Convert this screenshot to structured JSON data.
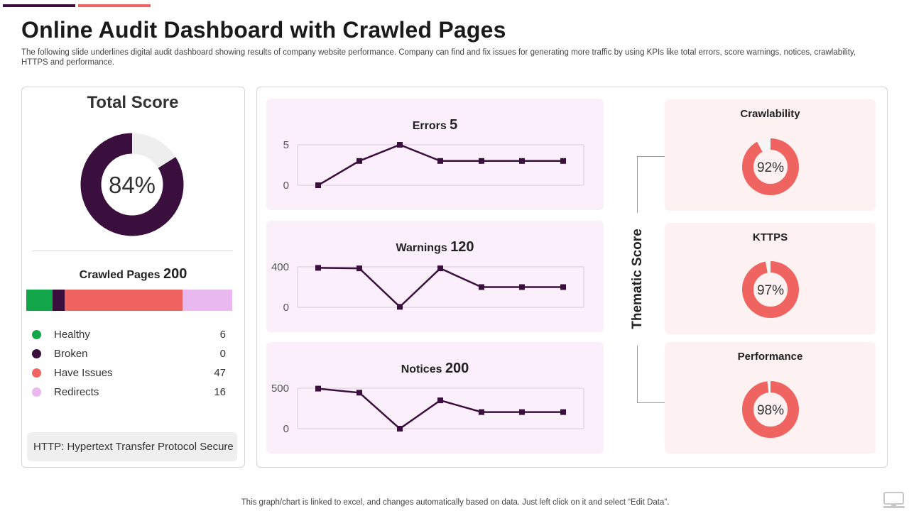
{
  "header": {
    "title": "Online Audit Dashboard with Crawled Pages",
    "subtitle": "The following slide underlines digital audit dashboard showing results of company website performance. Company can find and fix  issues for generating more traffic by using KPIs like total errors, score warnings, notices, crawlability, HTTPS  and performance."
  },
  "total_score": {
    "title": "Total Score",
    "label": "84%",
    "percent": 84,
    "colors": {
      "fill": "#3b0f3d",
      "track": "#eeeeee"
    }
  },
  "crawled": {
    "title": "Crawled Pages",
    "total": "200",
    "items": [
      {
        "label": "Healthy",
        "value": "6",
        "amount": 6,
        "color": "#13a54a"
      },
      {
        "label": "Broken",
        "value": "0",
        "amount": 0,
        "color": "#3b0f3d"
      },
      {
        "label": "Have Issues",
        "value": "47",
        "amount": 47,
        "color": "#ef6461"
      },
      {
        "label": "Redirects",
        "value": "16",
        "amount": 16,
        "color": "#e9b8ee"
      }
    ],
    "bar_fractions": [
      0.127,
      0.058,
      0.575,
      0.24
    ],
    "http_note": "HTTP: Hypertext Transfer Protocol Secure"
  },
  "chart_data": [
    {
      "type": "line",
      "title": "Errors",
      "title_value": "5",
      "y_ticks": [
        "5",
        "0"
      ],
      "ylim": [
        0,
        5
      ],
      "values": [
        0,
        3,
        5,
        3,
        3,
        3,
        3
      ],
      "color": "#3b0f3d"
    },
    {
      "type": "line",
      "title": "Warnings",
      "title_value": "120",
      "y_ticks": [
        "400",
        "0"
      ],
      "ylim": [
        0,
        400
      ],
      "values": [
        390,
        385,
        5,
        385,
        200,
        200,
        200
      ],
      "color": "#3b0f3d"
    },
    {
      "type": "line",
      "title": "Notices",
      "title_value": "200",
      "y_ticks": [
        "500",
        "0"
      ],
      "ylim": [
        0,
        500
      ],
      "values": [
        495,
        445,
        0,
        350,
        205,
        205,
        205
      ],
      "color": "#3b0f3d"
    }
  ],
  "thematic": {
    "title": "Thematic Score",
    "items": [
      {
        "title": "Crawlability",
        "label": "92%",
        "percent": 92
      },
      {
        "title": "KTTPS",
        "label": "97%",
        "percent": 97
      },
      {
        "title": "Performance",
        "label": "98%",
        "percent": 98
      }
    ],
    "colors": {
      "fill": "#ef6461",
      "track": "#f5f5f5"
    }
  },
  "footer": {
    "note": "This graph/chart is linked to excel,  and changes automatically based on data. Just left click on it and select “Edit Data”."
  }
}
